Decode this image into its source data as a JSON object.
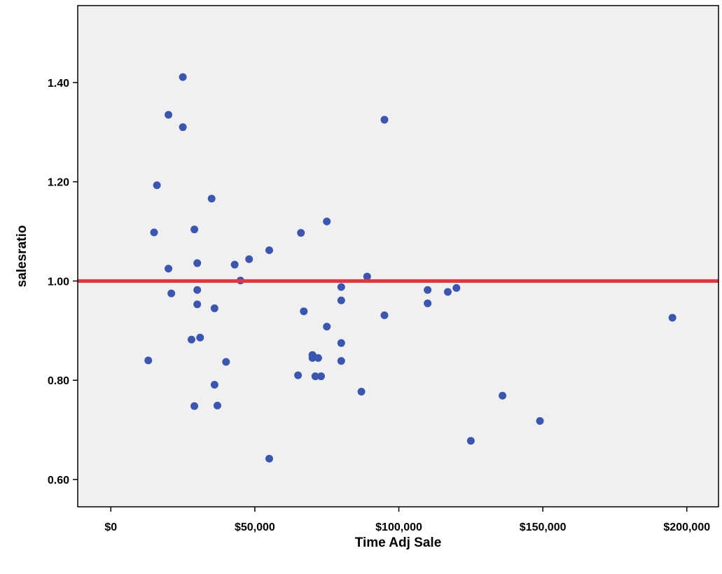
{
  "chart_data": {
    "type": "scatter",
    "title": "",
    "xlabel": "Time Adj Sale",
    "ylabel": "salesratio",
    "xlim": [
      -11500,
      211000
    ],
    "ylim": [
      0.545,
      1.555
    ],
    "x_ticks": [
      0,
      50000,
      100000,
      150000,
      200000
    ],
    "x_tick_labels": [
      "$0",
      "$50,000",
      "$100,000",
      "$150,000",
      "$200,000"
    ],
    "y_ticks": [
      0.6,
      0.8,
      1.0,
      1.2,
      1.4
    ],
    "y_tick_labels": [
      "0.60",
      "0.80",
      "1.00",
      "1.20",
      "1.40"
    ],
    "grid": false,
    "colors": {
      "plot_background": "#f0f0f0",
      "point": "#3a56b0",
      "reference_line": "#e8343c",
      "axis": "#000000"
    },
    "reference_line": {
      "orientation": "horizontal",
      "y": 1.0
    },
    "series": [
      {
        "points": [
          [
            13000,
            0.84
          ],
          [
            15000,
            1.098
          ],
          [
            16000,
            1.193
          ],
          [
            20000,
            1.335
          ],
          [
            20000,
            1.025
          ],
          [
            21000,
            0.975
          ],
          [
            25000,
            1.411
          ],
          [
            25000,
            1.31
          ],
          [
            28000,
            0.882
          ],
          [
            29000,
            0.748
          ],
          [
            29000,
            1.104
          ],
          [
            30000,
            1.036
          ],
          [
            30000,
            0.982
          ],
          [
            30000,
            0.953
          ],
          [
            31000,
            0.886
          ],
          [
            35000,
            1.166
          ],
          [
            36000,
            0.945
          ],
          [
            36000,
            0.791
          ],
          [
            37000,
            0.749
          ],
          [
            40000,
            0.837
          ],
          [
            43000,
            1.033
          ],
          [
            45000,
            1.001
          ],
          [
            48000,
            1.044
          ],
          [
            55000,
            1.062
          ],
          [
            55000,
            0.642
          ],
          [
            65000,
            0.81
          ],
          [
            66000,
            1.097
          ],
          [
            67000,
            0.939
          ],
          [
            70000,
            0.845
          ],
          [
            70000,
            0.851
          ],
          [
            71000,
            0.808
          ],
          [
            72000,
            0.845
          ],
          [
            73000,
            0.808
          ],
          [
            75000,
            0.908
          ],
          [
            75000,
            1.12
          ],
          [
            80000,
            0.988
          ],
          [
            80000,
            0.961
          ],
          [
            80000,
            0.875
          ],
          [
            80000,
            0.839
          ],
          [
            87000,
            0.777
          ],
          [
            89000,
            1.009
          ],
          [
            95000,
            1.325
          ],
          [
            95000,
            0.931
          ],
          [
            110000,
            0.982
          ],
          [
            110000,
            0.955
          ],
          [
            117000,
            0.978
          ],
          [
            120000,
            0.986
          ],
          [
            125000,
            0.678
          ],
          [
            136000,
            0.769
          ],
          [
            149000,
            0.718
          ],
          [
            195000,
            0.926
          ]
        ]
      }
    ]
  }
}
